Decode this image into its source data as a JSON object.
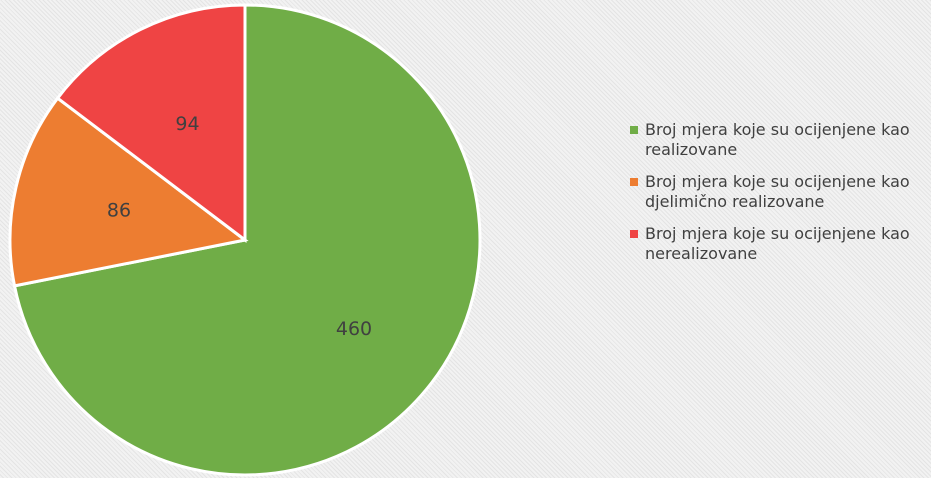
{
  "chart_data": {
    "type": "pie",
    "categories": [
      "Broj mjera koje su ocijenjene kao realizovane",
      "Broj mjera koje su ocijenjene kao djelimično realizovane",
      "Broj mjera koje su ocijenjene kao nerealizovane"
    ],
    "values": [
      460,
      86,
      94
    ],
    "colors": [
      "#70ad47",
      "#ed7d31",
      "#ef4444"
    ],
    "legend": "right"
  }
}
